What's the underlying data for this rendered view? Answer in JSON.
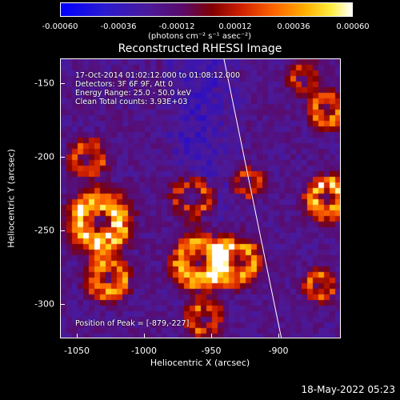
{
  "colorbar": {
    "ticks": [
      "-0.00060",
      "-0.00036",
      "-0.00012",
      "0.00012",
      "0.00036",
      "0.00060"
    ],
    "units": "(photons cm⁻² s⁻¹ asec⁻²)"
  },
  "title": "Reconstructed RHESSI Image",
  "annotations": {
    "time": "17-Oct-2014 01:02:12.000 to 01:08:12.000",
    "detectors": "Detectors: 3F 6F 9F, Att 0",
    "energy": "Energy Range: 25.0 - 50.0 keV",
    "clean": "Clean    Total counts: 3.93E+03",
    "position": "Position of Peak = [-879,-227]"
  },
  "axes": {
    "y_title": "Heliocentric Y (arcsec)",
    "x_title": "Heliocentric X (arcsec)",
    "y_ticks": [
      "-150",
      "-200",
      "-250",
      "-300"
    ],
    "x_ticks": [
      "-1050",
      "-1000",
      "-950",
      "-900"
    ]
  },
  "footer": {
    "timestamp": "18-May-2022 05:23"
  }
}
